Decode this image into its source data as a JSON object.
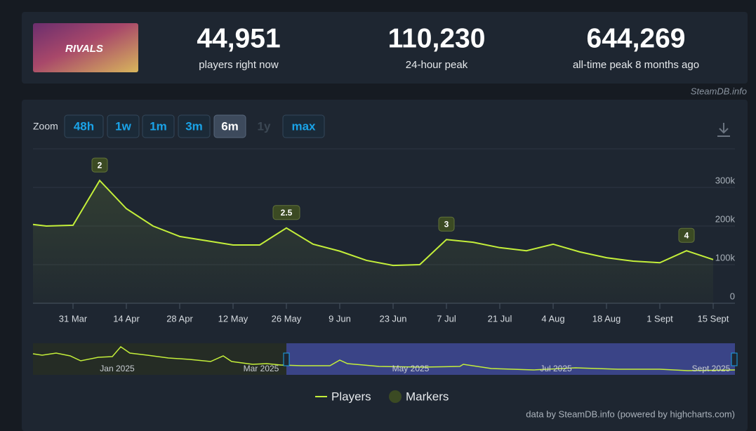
{
  "game_logo": "RIVALS",
  "stats": [
    {
      "value": "44,951",
      "label": "players right now"
    },
    {
      "value": "110,230",
      "label": "24-hour peak"
    },
    {
      "value": "644,269",
      "label": "all-time peak 8 months ago"
    }
  ],
  "watermark": "SteamDB.info",
  "zoom": {
    "label": "Zoom",
    "options": [
      "48h",
      "1w",
      "1m",
      "3m",
      "6m",
      "1y",
      "max"
    ],
    "active": "6m",
    "disabled": "1y"
  },
  "navigator": {
    "labels": [
      "Jan 2025",
      "Mar 2025",
      "May 2025",
      "Jul 2025",
      "Sept 2025"
    ]
  },
  "credit": "data by SteamDB.info (powered by highcharts.com)",
  "chart_data": {
    "type": "line",
    "categories": [
      null,
      null,
      "31 Mar",
      null,
      "14 Apr",
      null,
      "28 Apr",
      null,
      "12 May",
      null,
      "26 May",
      null,
      "9 Jun",
      null,
      "23 Jun",
      null,
      "7 Jul",
      null,
      "21 Jul",
      null,
      "4 Aug",
      null,
      "18 Aug",
      null,
      "1 Sept",
      null,
      "15 Sept"
    ],
    "series": [
      {
        "name": "Players",
        "color": "#c4ef3a",
        "values": [
          204000,
          200000,
          202000,
          318000,
          245000,
          200000,
          173000,
          162000,
          151000,
          151000,
          195000,
          153000,
          135000,
          111000,
          98000,
          100000,
          165000,
          158000,
          144000,
          136000,
          153000,
          133000,
          118000,
          109000,
          105000,
          136000,
          113000
        ]
      }
    ],
    "marker_labels": [
      null,
      null,
      null,
      "2",
      null,
      null,
      null,
      null,
      null,
      null,
      "2.5",
      null,
      null,
      null,
      null,
      null,
      "3",
      null,
      null,
      null,
      null,
      null,
      null,
      null,
      null,
      "4",
      null
    ],
    "markers_legend": {
      "name": "Markers",
      "color": "#3b4a23"
    },
    "ylim": [
      0,
      400000
    ],
    "yticks": [
      0,
      {
        "value": 100000,
        "label": "100k"
      },
      {
        "value": 200000,
        "label": "200k"
      },
      {
        "value": 300000,
        "label": "300k"
      }
    ],
    "grid": true
  }
}
